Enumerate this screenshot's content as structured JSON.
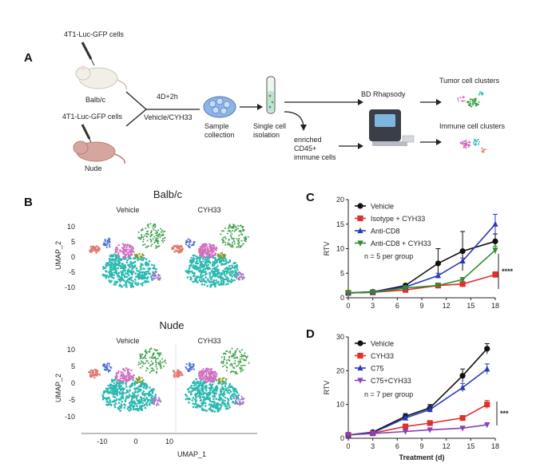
{
  "figure": {
    "panel_a": {
      "label": "A",
      "cell_line_top": "4T1-Luc-GFP cells",
      "mouse_top": "Balb/c",
      "cell_line_bottom": "4T1-Luc-GFP cells",
      "mouse_bottom": "Nude",
      "treatment_time": "4D+2h",
      "treatment": "Vehicle/CYH33",
      "step_sample_1": "Sample",
      "step_sample_2": "collection",
      "step_single_1": "Single cell",
      "step_single_2": "isolation",
      "platform": "BD Rhapsody",
      "enriched_1": "enriched",
      "enriched_2": "CD45+",
      "enriched_3": "immune cells",
      "tumor_clusters": "Tumor cell clusters",
      "immune_clusters": "Immune cell clusters"
    },
    "panel_b": {
      "label": "B",
      "group_top": "Balb/c",
      "group_bottom": "Nude",
      "col_vehicle": "Vehicle",
      "col_cyh33": "CYH33",
      "ylabel": "UMAP_2",
      "xlabel": "UMAP_1",
      "yticks": [
        "10",
        "5",
        "0",
        "-5",
        "-10"
      ],
      "xticks": [
        "-10",
        "0",
        "10"
      ],
      "cluster_colors": [
        "#2bb8b0",
        "#d06fc0",
        "#3fa14b",
        "#e07a6e",
        "#4a6fd1",
        "#8a9a2e",
        "#a57ac9"
      ]
    },
    "panel_c_label": "C",
    "panel_c_note": "n = 5 per group",
    "panel_c_sig": "****",
    "panel_d_label": "D",
    "panel_d_note": "n = 7 per group",
    "panel_d_sig": "***"
  },
  "chart_data": [
    {
      "type": "line",
      "panel": "C",
      "title": "",
      "xlabel": "",
      "ylabel": "RTV",
      "x": [
        0,
        3,
        7,
        11,
        14,
        18
      ],
      "xticks": [
        0,
        3,
        6,
        9,
        12,
        15,
        18
      ],
      "xlim": [
        0,
        18
      ],
      "yticks": [
        0,
        5,
        10,
        15,
        20
      ],
      "ylim": [
        0,
        20
      ],
      "legend_position": "top-left",
      "series": [
        {
          "name": "Vehicle",
          "color": "#111111",
          "marker": "circle",
          "values": [
            1.0,
            1.2,
            2.5,
            7.0,
            9.5,
            11.5
          ],
          "errors": [
            0.1,
            0.2,
            0.3,
            3.0,
            4.0,
            1.5
          ]
        },
        {
          "name": "Isotype + CYH33",
          "color": "#e0302c",
          "marker": "square",
          "values": [
            1.0,
            1.1,
            1.6,
            2.5,
            2.8,
            4.7
          ],
          "errors": [
            0.1,
            0.1,
            0.2,
            0.3,
            0.3,
            0.6
          ]
        },
        {
          "name": "Anti-CD8",
          "color": "#2a3bb8",
          "marker": "triangle-up",
          "values": [
            1.0,
            1.2,
            2.2,
            4.5,
            7.5,
            15.0
          ],
          "errors": [
            0.1,
            0.1,
            0.3,
            0.5,
            0.6,
            2.0
          ]
        },
        {
          "name": "Anti-CD8 + CYH33",
          "color": "#2e8b2e",
          "marker": "triangle-down",
          "values": [
            1.0,
            1.1,
            2.0,
            2.5,
            3.7,
            9.7
          ],
          "errors": [
            0.1,
            0.1,
            0.2,
            0.3,
            0.4,
            0.8
          ]
        }
      ]
    },
    {
      "type": "line",
      "panel": "D",
      "title": "",
      "xlabel": "Treatment (d)",
      "ylabel": "RTV",
      "x": [
        0,
        3,
        7,
        10,
        14,
        17
      ],
      "xticks": [
        0,
        3,
        6,
        9,
        12,
        15,
        18
      ],
      "xlim": [
        0,
        18
      ],
      "yticks": [
        0,
        10,
        20,
        30
      ],
      "ylim": [
        0,
        30
      ],
      "legend_position": "top-left",
      "series": [
        {
          "name": "Vehicle",
          "color": "#111111",
          "marker": "circle",
          "values": [
            1.0,
            1.8,
            6.5,
            9.0,
            18.5,
            26.5
          ],
          "errors": [
            0.1,
            0.2,
            0.8,
            1.0,
            2.0,
            1.5
          ]
        },
        {
          "name": "CYH33",
          "color": "#e0302c",
          "marker": "square",
          "values": [
            1.0,
            1.5,
            3.5,
            4.5,
            6.0,
            10.0
          ],
          "errors": [
            0.1,
            0.2,
            0.4,
            0.5,
            0.6,
            1.2
          ]
        },
        {
          "name": "C75",
          "color": "#2a3bb8",
          "marker": "triangle-up",
          "values": [
            1.0,
            1.6,
            6.0,
            8.5,
            15.0,
            20.5
          ],
          "errors": [
            0.1,
            0.2,
            0.6,
            0.8,
            1.2,
            1.5
          ]
        },
        {
          "name": "C75+CYH33",
          "color": "#8b3fb8",
          "marker": "triangle-down",
          "values": [
            1.0,
            1.4,
            2.0,
            2.5,
            3.0,
            4.0
          ],
          "errors": [
            0.1,
            0.1,
            0.2,
            0.2,
            0.3,
            0.4
          ]
        }
      ]
    }
  ]
}
